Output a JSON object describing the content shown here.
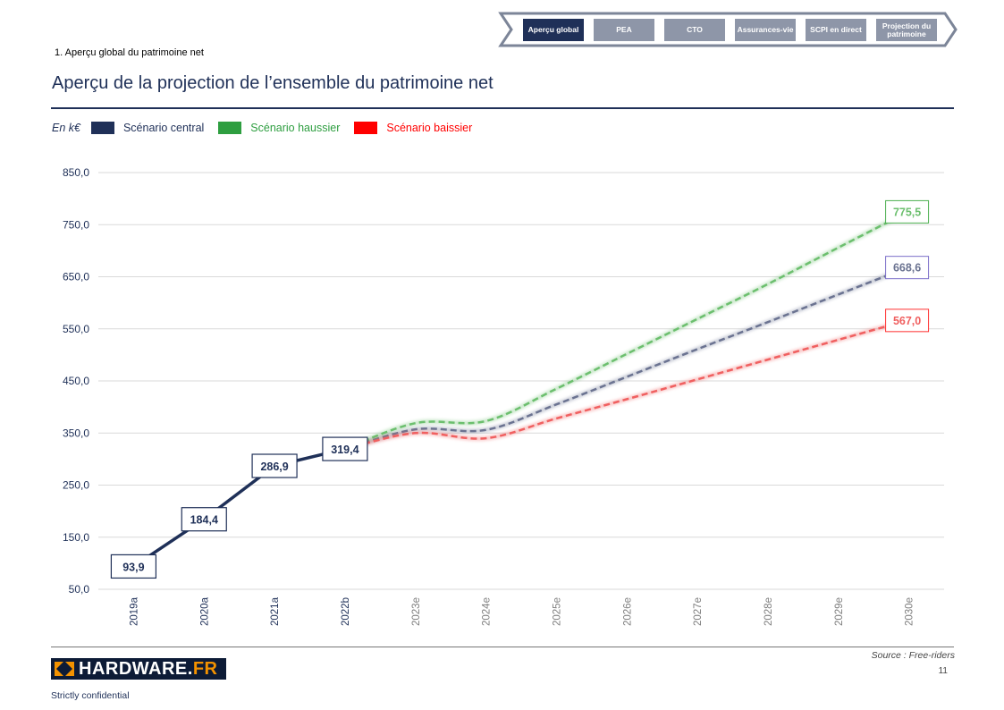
{
  "nav": {
    "tabs": [
      {
        "label": "Aperçu global",
        "active": true
      },
      {
        "label": "PEA",
        "active": false
      },
      {
        "label": "CTO",
        "active": false
      },
      {
        "label": "Assurances-vie",
        "active": false
      },
      {
        "label": "SCPI en direct",
        "active": false
      },
      {
        "label": "Projection du patrimoine",
        "active": false
      }
    ]
  },
  "section": "1. Aperçu global du patrimoine net",
  "title": "Aperçu de la projection de l’ensemble du patrimoine net",
  "footer": {
    "source": "Source : Free-riders",
    "page": "11",
    "logo": "HARDWARE.FR",
    "confidential": "Strictly confidential"
  },
  "chart_data": {
    "type": "line",
    "unit_label": "En k€",
    "categories": [
      "2019a",
      "2020a",
      "2021a",
      "2022b",
      "2023e",
      "2024e",
      "2025e",
      "2026e",
      "2027e",
      "2028e",
      "2029e",
      "2030e"
    ],
    "ylim": [
      50,
      850
    ],
    "yticks": [
      "50,0",
      "150,0",
      "250,0",
      "350,0",
      "450,0",
      "550,0",
      "650,0",
      "750,0",
      "850,0"
    ],
    "grid": true,
    "legend_position": "top-left",
    "actual": {
      "values": [
        93.9,
        184.4,
        286.9,
        319.4
      ],
      "labels": [
        "93,9",
        "184,4",
        "286,9",
        "319,4"
      ],
      "color": "#1f3058"
    },
    "series": [
      {
        "name": "Scénario central",
        "legend_color": "#1f3058",
        "line_color": "#6b7391",
        "values": [
          null,
          null,
          null,
          319.4,
          357,
          356,
          405,
          458,
          511,
          563,
          616,
          668.6
        ],
        "end_label": "668,6",
        "label_border": "#7b6fc9"
      },
      {
        "name": "Scénario haussier",
        "legend_color": "#2e9e40",
        "line_color": "#6cbf6e",
        "values": [
          null,
          null,
          null,
          319.4,
          369,
          373,
          435,
          502,
          569,
          636,
          706,
          775.5
        ],
        "end_label": "775,5",
        "label_border": "#4caf50"
      },
      {
        "name": "Scénario baissier",
        "legend_color": "#ff0000",
        "line_color": "#f06060",
        "values": [
          null,
          null,
          null,
          319.4,
          350,
          340,
          378,
          415,
          453,
          491,
          529,
          567.0
        ],
        "end_label": "567,0",
        "label_border": "#ff3030"
      }
    ]
  }
}
